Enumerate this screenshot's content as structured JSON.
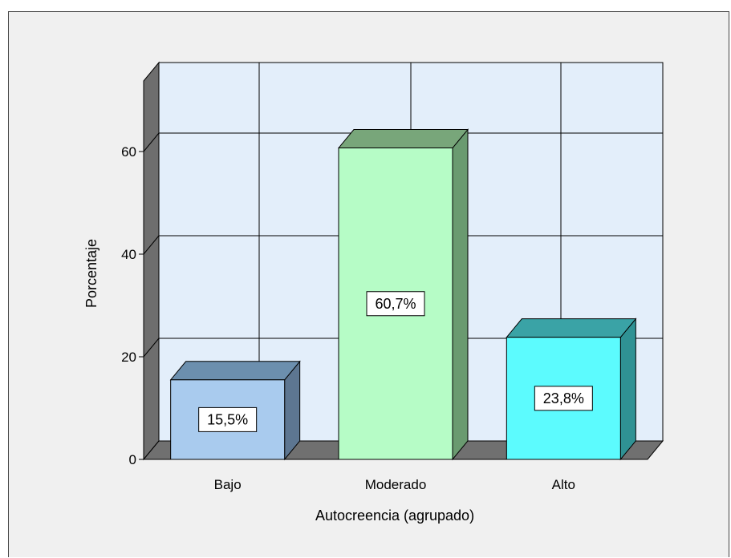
{
  "chart_data": {
    "type": "bar",
    "style": "3d",
    "categories": [
      "Bajo",
      "Moderado",
      "Alto"
    ],
    "values": [
      15.5,
      60.7,
      23.8
    ],
    "data_labels": [
      "15,5%",
      "60,7%",
      "23,8%"
    ],
    "xlabel": "Autocreencia (agrupado)",
    "ylabel": "Porcentaje",
    "ylim": [
      0,
      70
    ],
    "yticks": [
      0,
      20,
      40,
      60
    ],
    "grid": true,
    "colors": {
      "bar_fronts": [
        "#a9cbee",
        "#b6fcc6",
        "#5cfbfe"
      ],
      "bar_tops": [
        "#6c8fae",
        "#78a67a",
        "#3aa3a6"
      ],
      "bar_sides": [
        "#5d7691",
        "#6a9a70",
        "#2f9294"
      ],
      "wall": "#e3eefa",
      "left_wall": "#6e6e6e",
      "floor": "#707070",
      "frame": "#f0f0f0"
    }
  }
}
